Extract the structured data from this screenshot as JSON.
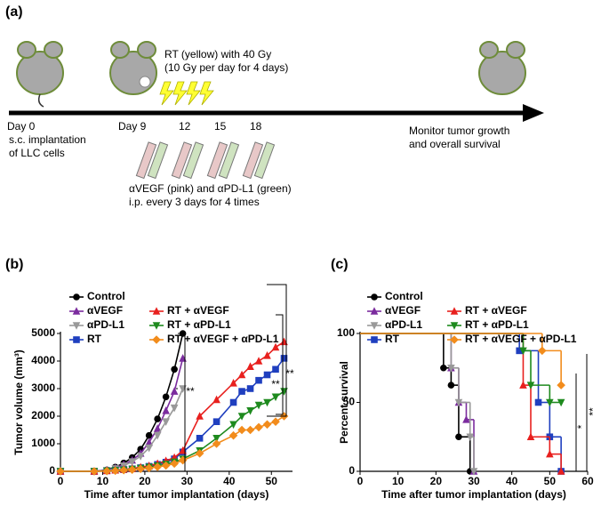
{
  "timeline": {
    "panel_label": "(a)",
    "rt_line1": "RT (yellow) with 40 Gy",
    "rt_line2": "(10 Gy per day for 4 days)",
    "day0": "Day 0",
    "day0_line1": "s.c. implantation",
    "day0_line2": "of LLC cells",
    "day9": "Day 9",
    "day12": "12",
    "day15": "15",
    "day18": "18",
    "monitor_line1": "Monitor tumor growth",
    "monitor_line2": "and overall survival",
    "drug_line1": "αVEGF (pink) and αPD-L1 (green)",
    "drug_line2": "i.p. every 3 days for 4 times"
  },
  "chart_data": [
    {
      "type": "line",
      "panel_label": "(b)",
      "x_label": "Time after tumor implantation (days)",
      "y_label": "Tumor volume (mm³)",
      "xlim": [
        0,
        55
      ],
      "xticks": [
        0,
        10,
        20,
        30,
        40,
        50
      ],
      "ylim": [
        0,
        5000
      ],
      "yticks": [
        0,
        1000,
        2000,
        3000,
        4000,
        5000
      ],
      "series": [
        {
          "name": "Control",
          "color": "#000000",
          "marker": "circle",
          "x": [
            0,
            8,
            11,
            13,
            15,
            17,
            19,
            21,
            23,
            25,
            27,
            29
          ],
          "values": [
            0,
            0,
            50,
            150,
            300,
            500,
            800,
            1300,
            1900,
            2700,
            3700,
            5000
          ]
        },
        {
          "name": "αVEGF",
          "color": "#7b2c9e",
          "marker": "triangle-up",
          "x": [
            0,
            8,
            11,
            13,
            15,
            17,
            19,
            21,
            23,
            25,
            27,
            29
          ],
          "values": [
            0,
            0,
            40,
            120,
            250,
            400,
            650,
            1050,
            1550,
            2200,
            2900,
            4100
          ]
        },
        {
          "name": "αPD-L1",
          "color": "#999999",
          "marker": "triangle-down",
          "x": [
            0,
            8,
            11,
            13,
            15,
            17,
            19,
            21,
            23,
            25,
            27,
            29
          ],
          "values": [
            0,
            0,
            30,
            100,
            200,
            350,
            550,
            850,
            1300,
            1800,
            2300,
            3000
          ]
        },
        {
          "name": "RT",
          "color": "#1f3fbf",
          "marker": "square",
          "x": [
            0,
            8,
            11,
            13,
            15,
            17,
            19,
            21,
            23,
            25,
            27,
            29,
            33,
            37,
            41,
            43,
            45,
            47,
            49,
            51,
            53
          ],
          "values": [
            0,
            0,
            20,
            40,
            60,
            90,
            130,
            180,
            250,
            330,
            450,
            700,
            1200,
            1800,
            2500,
            2900,
            3000,
            3300,
            3500,
            3700,
            4100
          ]
        },
        {
          "name": "RT + αVEGF",
          "color": "#e8201e",
          "marker": "triangle-up",
          "x": [
            0,
            8,
            11,
            13,
            15,
            17,
            19,
            21,
            23,
            25,
            27,
            29,
            33,
            37,
            41,
            43,
            45,
            47,
            49,
            51,
            53
          ],
          "values": [
            0,
            0,
            20,
            40,
            70,
            100,
            150,
            200,
            280,
            380,
            500,
            750,
            2000,
            2600,
            3200,
            3500,
            3800,
            4000,
            4200,
            4500,
            4700
          ]
        },
        {
          "name": "RT + αPD-L1",
          "color": "#1e8a1e",
          "marker": "triangle-down",
          "x": [
            0,
            8,
            11,
            13,
            15,
            17,
            19,
            21,
            23,
            25,
            27,
            29,
            33,
            37,
            41,
            43,
            45,
            47,
            49,
            51,
            53
          ],
          "values": [
            0,
            0,
            15,
            30,
            50,
            80,
            110,
            150,
            200,
            260,
            340,
            450,
            750,
            1200,
            1700,
            2000,
            2200,
            2400,
            2500,
            2700,
            2900
          ]
        },
        {
          "name": "RT + αVEGF + αPD-L1",
          "color": "#f28c1c",
          "marker": "diamond",
          "x": [
            0,
            8,
            11,
            13,
            15,
            17,
            19,
            21,
            23,
            25,
            27,
            29,
            33,
            37,
            41,
            43,
            45,
            47,
            49,
            51,
            53
          ],
          "values": [
            0,
            0,
            10,
            20,
            40,
            60,
            90,
            120,
            160,
            210,
            280,
            400,
            650,
            1000,
            1300,
            1500,
            1500,
            1600,
            1700,
            1800,
            2000
          ]
        }
      ],
      "annotations": [
        "**",
        "**",
        "**"
      ]
    },
    {
      "type": "step",
      "panel_label": "(c)",
      "x_label": "Time after tumor implantation (days)",
      "y_label": "Percent survival",
      "xlim": [
        0,
        60
      ],
      "xticks": [
        0,
        10,
        20,
        30,
        40,
        50,
        60
      ],
      "ylim": [
        0,
        100
      ],
      "yticks": [
        0,
        50,
        100
      ],
      "series": [
        {
          "name": "Control",
          "color": "#000000",
          "marker": "circle",
          "x": [
            0,
            22,
            24,
            26,
            29
          ],
          "values": [
            100,
            75,
            62.5,
            25,
            0
          ]
        },
        {
          "name": "αVEGF",
          "color": "#7b2c9e",
          "marker": "triangle-up",
          "x": [
            0,
            24,
            26,
            28,
            30
          ],
          "values": [
            100,
            75,
            50,
            37.5,
            0
          ]
        },
        {
          "name": "αPD-L1",
          "color": "#999999",
          "marker": "triangle-down",
          "x": [
            0,
            24,
            26,
            29,
            30
          ],
          "values": [
            100,
            75,
            50,
            25,
            0
          ]
        },
        {
          "name": "RT",
          "color": "#1f3fbf",
          "marker": "square",
          "x": [
            0,
            42,
            47,
            50,
            53
          ],
          "values": [
            100,
            87.5,
            50,
            25,
            0
          ]
        },
        {
          "name": "RT + αVEGF",
          "color": "#e8201e",
          "marker": "triangle-up",
          "x": [
            0,
            43,
            45,
            50,
            53
          ],
          "values": [
            100,
            62.5,
            25,
            12.5,
            0
          ]
        },
        {
          "name": "RT + αPD-L1",
          "color": "#1e8a1e",
          "marker": "triangle-down",
          "x": [
            0,
            43,
            45,
            50,
            53
          ],
          "values": [
            100,
            87.5,
            62.5,
            50,
            50
          ]
        },
        {
          "name": "RT + αVEGF + αPD-L1",
          "color": "#f28c1c",
          "marker": "diamond",
          "x": [
            0,
            48,
            53
          ],
          "values": [
            100,
            87.5,
            62.5
          ]
        }
      ],
      "annotations": [
        "*",
        "**"
      ]
    }
  ]
}
